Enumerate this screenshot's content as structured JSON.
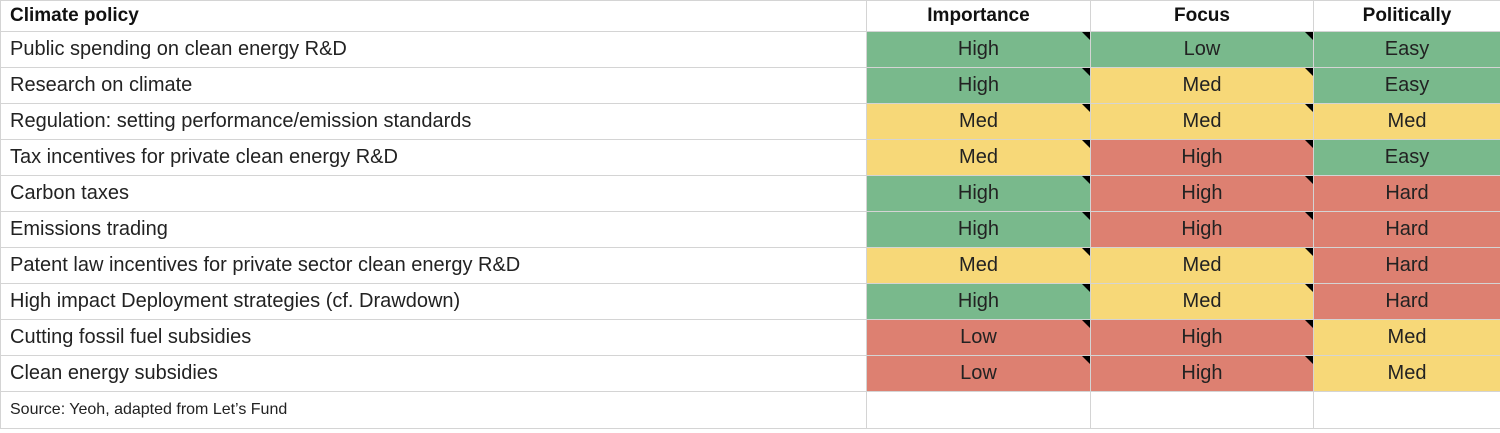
{
  "table": {
    "header": [
      "Climate policy",
      "Importance",
      "Focus",
      "Politically"
    ],
    "rows": [
      {
        "policy": "Public spending on clean energy R&D",
        "cells": [
          {
            "text": "High",
            "color": "#79b98c"
          },
          {
            "text": "Low",
            "color": "#79b98c"
          },
          {
            "text": "Easy",
            "color": "#79b98c"
          }
        ]
      },
      {
        "policy": "Research on climate",
        "cells": [
          {
            "text": "High",
            "color": "#79b98c"
          },
          {
            "text": "Med",
            "color": "#f7d878"
          },
          {
            "text": "Easy",
            "color": "#79b98c"
          }
        ]
      },
      {
        "policy": "Regulation: setting performance/emission standards",
        "cells": [
          {
            "text": "Med",
            "color": "#f7d878"
          },
          {
            "text": "Med",
            "color": "#f7d878"
          },
          {
            "text": "Med",
            "color": "#f7d878"
          }
        ]
      },
      {
        "policy": "Tax incentives for private clean energy R&D",
        "cells": [
          {
            "text": "Med",
            "color": "#f7d878"
          },
          {
            "text": "High",
            "color": "#dd8071"
          },
          {
            "text": "Easy",
            "color": "#79b98c"
          }
        ]
      },
      {
        "policy": "Carbon taxes",
        "cells": [
          {
            "text": "High",
            "color": "#79b98c"
          },
          {
            "text": "High",
            "color": "#dd8071"
          },
          {
            "text": "Hard",
            "color": "#dd8071"
          }
        ]
      },
      {
        "policy": "Emissions trading",
        "cells": [
          {
            "text": "High",
            "color": "#79b98c"
          },
          {
            "text": "High",
            "color": "#dd8071"
          },
          {
            "text": "Hard",
            "color": "#dd8071"
          }
        ]
      },
      {
        "policy": "Patent law incentives for private sector clean energy R&D",
        "cells": [
          {
            "text": "Med",
            "color": "#f7d878"
          },
          {
            "text": "Med",
            "color": "#f7d878"
          },
          {
            "text": "Hard",
            "color": "#dd8071"
          }
        ]
      },
      {
        "policy": "High impact Deployment strategies (cf. Drawdown)",
        "cells": [
          {
            "text": "High",
            "color": "#79b98c"
          },
          {
            "text": "Med",
            "color": "#f7d878"
          },
          {
            "text": "Hard",
            "color": "#dd8071"
          }
        ]
      },
      {
        "policy": "Cutting fossil fuel subsidies",
        "cells": [
          {
            "text": "Low",
            "color": "#dd8071"
          },
          {
            "text": "High",
            "color": "#dd8071"
          },
          {
            "text": "Med",
            "color": "#f7d878"
          }
        ]
      },
      {
        "policy": "Clean energy subsidies",
        "cells": [
          {
            "text": "Low",
            "color": "#dd8071"
          },
          {
            "text": "High",
            "color": "#dd8071"
          },
          {
            "text": "Med",
            "color": "#f7d878"
          }
        ]
      }
    ],
    "source": "Source: Yeoh, adapted from Let’s Fund"
  }
}
